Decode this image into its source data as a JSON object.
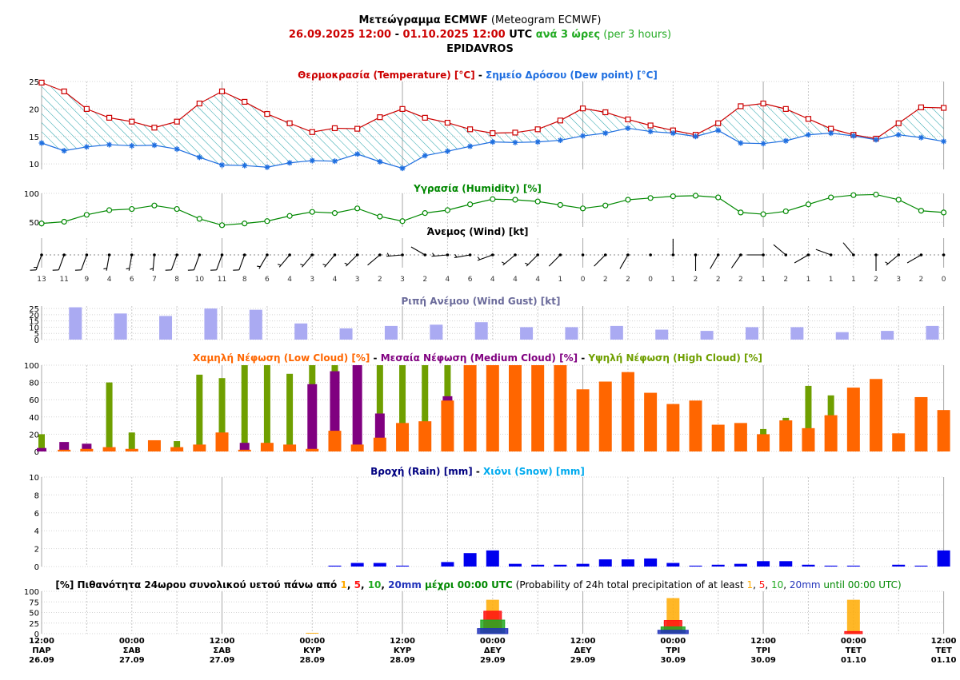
{
  "header": {
    "title_bold": "Μετεώγραμμα ECMWF",
    "title_rest": " (Meteogram ECMWF)",
    "start": "26.09.2025 12:00",
    "dash": " - ",
    "end": "01.10.2025 12:00",
    "utc": " UTC ",
    "step_gr": "ανά 3 ώρες",
    "step_en": " (per 3 hours)",
    "location": "EPIDAVROS"
  },
  "colors": {
    "temperature": "#cc0000",
    "dew_point": "#1e6ee0",
    "humidity": "#008800",
    "gust": "#aaaaf2",
    "low_cloud": "#ff6600",
    "medium_cloud": "#800080",
    "high_cloud": "#6f9f00",
    "rain": "#0000ee",
    "snow": "#00aaee",
    "prob1": "#ffaa00",
    "prob5": "#ff1111",
    "prob10": "#22aa22",
    "prob20": "#2233bb"
  },
  "panels": {
    "temp": {
      "title_a": "Θερμοκρασία (Temperature) [°C]",
      "sep": " - ",
      "title_b": "Σημείο Δρόσου (Dew point) [°C]"
    },
    "humidity": {
      "title": "Υγρασία (Humidity) [%]"
    },
    "wind": {
      "title": "Άνεμος (Wind) [kt]"
    },
    "gust": {
      "title": "Ριπή Ανέμου (Wind Gust) [kt]"
    },
    "cloud": {
      "title_low": "Χαμηλή Νέφωση (Low Cloud) [%]",
      "sep": " - ",
      "title_med": "Μεσαία Νέφωση (Medium Cloud) [%]",
      "title_high": "Υψηλή Νέφωση (High Cloud) [%]"
    },
    "precip": {
      "title_rain": "Βροχή (Rain) [mm]",
      "sep": " - ",
      "title_snow": "Χιόνι (Snow) [mm]"
    },
    "prob": {
      "t1": "[%] Πιθανότητα 24ωρου συνολικού υετού πάνω από ",
      "v1": "1",
      "c1": ", ",
      "v5": "5",
      "c2": ", ",
      "v10": "10",
      "c3": ", ",
      "v20": "20mm",
      "t2": " μέχρι 00:00 UTC",
      "t3": " (Probability of 24h total precipitation of at least ",
      "w1": "1",
      "d1": ", ",
      "w5": "5",
      "d2": ", ",
      "w10": "10",
      "d3": ", ",
      "w20": "20mm",
      "t4": " until 00:00 UTC)"
    }
  },
  "x_labels": [
    [
      "12:00",
      "ΠΑΡ",
      "26.09"
    ],
    [
      "00:00",
      "ΣΑΒ",
      "27.09"
    ],
    [
      "12:00",
      "ΣΑΒ",
      "27.09"
    ],
    [
      "00:00",
      "ΚΥΡ",
      "28.09"
    ],
    [
      "12:00",
      "ΚΥΡ",
      "28.09"
    ],
    [
      "00:00",
      "ΔΕΥ",
      "29.09"
    ],
    [
      "12:00",
      "ΔΕΥ",
      "29.09"
    ],
    [
      "00:00",
      "ΤΡΙ",
      "30.09"
    ],
    [
      "12:00",
      "ΤΡΙ",
      "30.09"
    ],
    [
      "00:00",
      "ΤΕΤ",
      "01.10"
    ],
    [
      "12:00",
      "ΤΕΤ",
      "01.10"
    ]
  ],
  "chart_data": [
    {
      "type": "line",
      "title": "Θερμοκρασία (Temperature) [°C] - Σημείο Δρόσου (Dew point) [°C]",
      "ylim": [
        9,
        25
      ],
      "yticks": [
        10,
        15,
        20,
        25
      ],
      "series": [
        {
          "name": "Θερμοκρασία (Temperature) [°C]",
          "values": [
            24.8,
            23.2,
            20.0,
            18.4,
            17.7,
            16.6,
            17.7,
            21.0,
            23.2,
            21.3,
            19.1,
            17.4,
            15.8,
            16.5,
            16.4,
            18.5,
            20.0,
            18.4,
            17.5,
            16.3,
            15.6,
            15.7,
            16.3,
            17.9,
            20.1,
            19.4,
            18.1,
            17.0,
            16.1,
            15.3,
            17.4,
            20.5,
            21.0,
            20.0,
            18.2,
            16.4,
            15.3,
            14.6,
            17.4,
            20.3,
            20.2
          ]
        },
        {
          "name": "Σημείο Δρόσου (Dew point) [°C]",
          "values": [
            13.8,
            12.4,
            13.1,
            13.5,
            13.3,
            13.4,
            12.7,
            11.2,
            9.8,
            9.7,
            9.4,
            10.2,
            10.6,
            10.5,
            11.8,
            10.4,
            9.2,
            11.5,
            12.3,
            13.2,
            14.0,
            13.9,
            14.0,
            14.3,
            15.1,
            15.6,
            16.5,
            15.9,
            15.6,
            15.0,
            16.1,
            13.8,
            13.7,
            14.2,
            15.3,
            15.6,
            15.1,
            14.4,
            15.3,
            14.8,
            14.1
          ]
        }
      ]
    },
    {
      "type": "line",
      "title": "Υγρασία (Humidity) [%]",
      "ylim": [
        42,
        100
      ],
      "yticks": [
        50,
        100
      ],
      "series": [
        {
          "name": "Υγρασία (Humidity) [%]",
          "values": [
            48,
            51,
            63,
            71,
            73,
            79,
            73,
            56,
            45,
            48,
            52,
            61,
            68,
            66,
            74,
            60,
            52,
            66,
            71,
            81,
            90,
            89,
            86,
            80,
            74,
            79,
            89,
            92,
            95,
            96,
            93,
            67,
            64,
            69,
            81,
            93,
            97,
            98,
            89,
            70,
            67
          ]
        }
      ]
    },
    {
      "type": "table",
      "title": "Άνεμος (Wind) [kt]",
      "values": [
        13,
        11,
        9,
        4,
        6,
        7,
        8,
        10,
        11,
        8,
        6,
        4,
        3,
        4,
        3,
        2,
        3,
        2,
        4,
        6,
        4,
        4,
        4,
        1,
        0,
        2,
        2,
        0,
        1,
        2,
        2,
        2,
        1,
        2,
        1,
        1,
        1,
        2,
        3,
        2,
        0
      ],
      "directions_deg": [
        200,
        200,
        200,
        190,
        190,
        185,
        200,
        200,
        200,
        200,
        210,
        220,
        220,
        220,
        225,
        230,
        265,
        300,
        265,
        260,
        250,
        230,
        225,
        225,
        0,
        225,
        210,
        0,
        0,
        180,
        210,
        215,
        270,
        310,
        240,
        290,
        320,
        180,
        230,
        240,
        0
      ]
    },
    {
      "type": "bar",
      "title": "Ριπή Ανέμου (Wind Gust) [kt]",
      "ylim": [
        0,
        27
      ],
      "yticks": [
        0,
        5,
        10,
        15,
        20,
        25
      ],
      "series": [
        {
          "name": "Ριπή Ανέμου (Wind Gust) [kt]",
          "values": [
            null,
            26,
            null,
            21,
            null,
            19,
            null,
            25,
            null,
            24,
            null,
            13,
            null,
            9,
            null,
            11,
            null,
            12,
            null,
            14,
            null,
            10,
            null,
            10,
            null,
            11,
            null,
            8,
            null,
            7,
            null,
            10,
            null,
            10,
            null,
            6,
            null,
            7,
            null,
            11
          ]
        }
      ]
    },
    {
      "type": "bar",
      "title": "Χαμηλή Νέφωση (Low Cloud) [%] - Μεσαία Νέφωση (Medium Cloud) [%] - Υψηλή Νέφωση (High Cloud) [%]",
      "ylim": [
        0,
        100
      ],
      "yticks": [
        0,
        20,
        40,
        60,
        80,
        100
      ],
      "series": [
        {
          "name": "Υψηλή Νέφωση (High Cloud) [%]",
          "values": [
            20,
            0,
            0,
            80,
            22,
            0,
            12,
            89,
            85,
            100,
            100,
            90,
            100,
            100,
            100,
            100,
            100,
            100,
            100,
            0,
            0,
            0,
            0,
            0,
            0,
            0,
            0,
            0,
            0,
            0,
            0,
            0,
            26,
            39,
            76,
            65,
            0,
            0,
            0,
            0,
            0
          ]
        },
        {
          "name": "Μεσαία Νέφωση (Medium Cloud) [%]",
          "values": [
            4,
            11,
            9,
            0,
            0,
            0,
            0,
            0,
            0,
            10,
            0,
            0,
            78,
            93,
            100,
            44,
            0,
            0,
            64,
            0,
            0,
            0,
            0,
            0,
            0,
            0,
            0,
            0,
            0,
            0,
            0,
            0,
            0,
            0,
            0,
            0,
            0,
            0,
            0,
            0,
            0
          ]
        },
        {
          "name": "Χαμηλή Νέφωση (Low Cloud) [%]",
          "values": [
            0,
            2,
            3,
            5,
            3,
            13,
            5,
            8,
            22,
            2,
            10,
            8,
            3,
            24,
            8,
            16,
            33,
            35,
            59,
            100,
            100,
            100,
            100,
            100,
            72,
            81,
            92,
            68,
            55,
            59,
            31,
            33,
            20,
            36,
            27,
            42,
            74,
            84,
            21,
            63,
            48
          ]
        }
      ]
    },
    {
      "type": "bar",
      "title": "Βροχή (Rain) [mm] - Χιόνι (Snow) [mm]",
      "ylim": [
        0,
        10
      ],
      "yticks": [
        0,
        2,
        4,
        6,
        8,
        10
      ],
      "series": [
        {
          "name": "Βροχή (Rain) [mm]",
          "values": [
            0,
            0,
            0,
            0,
            0,
            0,
            0,
            0,
            0,
            0,
            0,
            0,
            0,
            0.1,
            0.4,
            0.4,
            0.1,
            0,
            0.5,
            1.5,
            1.8,
            0.3,
            0.2,
            0.2,
            0.3,
            0.8,
            0.8,
            0.9,
            0.4,
            0.1,
            0.2,
            0.3,
            0.6,
            0.6,
            0.2,
            0.1,
            0.1,
            0,
            0.2,
            0.1,
            1.8
          ]
        }
      ]
    },
    {
      "type": "bar",
      "title": "[%] Πιθανότητα 24ωρου συνολικού υετού πάνω από 1, 5, 10, 20mm μέχρι 00:00 UTC (Probability of 24h total precipitation of at least 1, 5, 10, 20mm until 00:00 UTC)",
      "ylim": [
        0,
        100
      ],
      "yticks": [
        0,
        25,
        50,
        75,
        100
      ],
      "categories": [
        "28.09 00:00",
        "29.09 00:00",
        "30.09 00:00",
        "01.10 00:00"
      ],
      "series": [
        {
          "name": "1",
          "values": [
            2,
            80,
            84,
            80
          ]
        },
        {
          "name": "5",
          "values": [
            0,
            53,
            31,
            5
          ]
        },
        {
          "name": "10",
          "values": [
            0,
            32,
            16,
            0
          ]
        },
        {
          "name": "20mm",
          "values": [
            0,
            12,
            8,
            0
          ]
        }
      ]
    }
  ]
}
